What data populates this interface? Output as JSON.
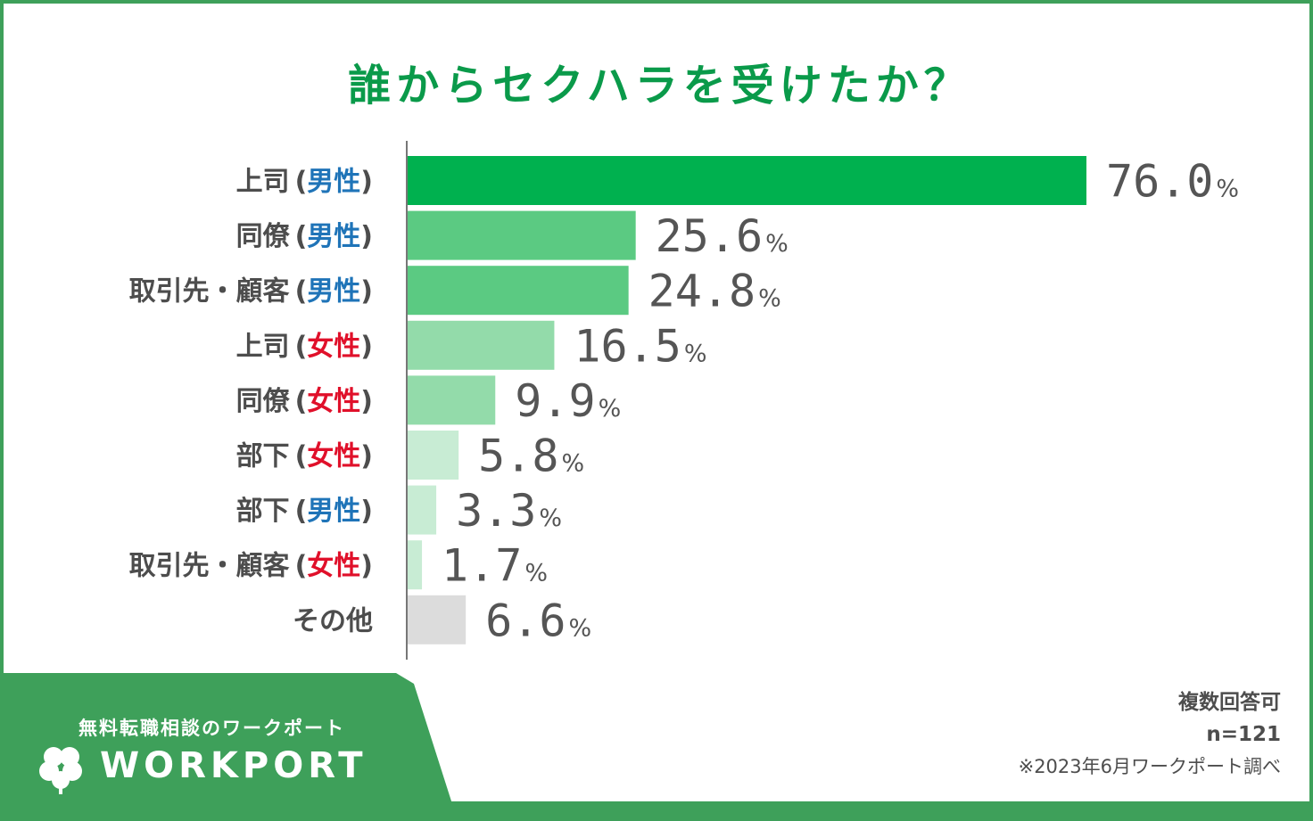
{
  "title": "誰からセクハラを受けたか？",
  "chart_data": {
    "type": "bar",
    "orientation": "horizontal",
    "title": "誰からセクハラを受けたか？",
    "unit": "%",
    "xlim": [
      0,
      76.0
    ],
    "categories": [
      {
        "base": "上司",
        "gender": "男性",
        "value": 76.0,
        "color": "#00b14f",
        "gender_color": "#1f74b8"
      },
      {
        "base": "同僚",
        "gender": "男性",
        "value": 25.6,
        "color": "#5bca82",
        "gender_color": "#1f74b8"
      },
      {
        "base": "取引先・顧客",
        "gender": "男性",
        "value": 24.8,
        "color": "#5bca82",
        "gender_color": "#1f74b8"
      },
      {
        "base": "上司",
        "gender": "女性",
        "value": 16.5,
        "color": "#93dbaa",
        "gender_color": "#e0102a"
      },
      {
        "base": "同僚",
        "gender": "女性",
        "value": 9.9,
        "color": "#93dbaa",
        "gender_color": "#e0102a"
      },
      {
        "base": "部下",
        "gender": "女性",
        "value": 5.8,
        "color": "#c8ecd4",
        "gender_color": "#e0102a"
      },
      {
        "base": "部下",
        "gender": "男性",
        "value": 3.3,
        "color": "#c8ecd4",
        "gender_color": "#1f74b8"
      },
      {
        "base": "取引先・顧客",
        "gender": "女性",
        "value": 1.7,
        "color": "#c8ecd4",
        "gender_color": "#e0102a"
      },
      {
        "base": "その他",
        "gender": "",
        "value": 6.6,
        "color": "#dcdcdc",
        "gender_color": ""
      }
    ],
    "value_suffix": "%"
  },
  "notes": {
    "multiple_answers": "複数回答可",
    "sample": "n=121",
    "source": "※2023年6月ワークポート調べ"
  },
  "brand": {
    "tagline": "無料転職相談のワークポート",
    "name": "WORKPORT",
    "logo_icon": "clover-icon",
    "color": "#3ea05a"
  }
}
